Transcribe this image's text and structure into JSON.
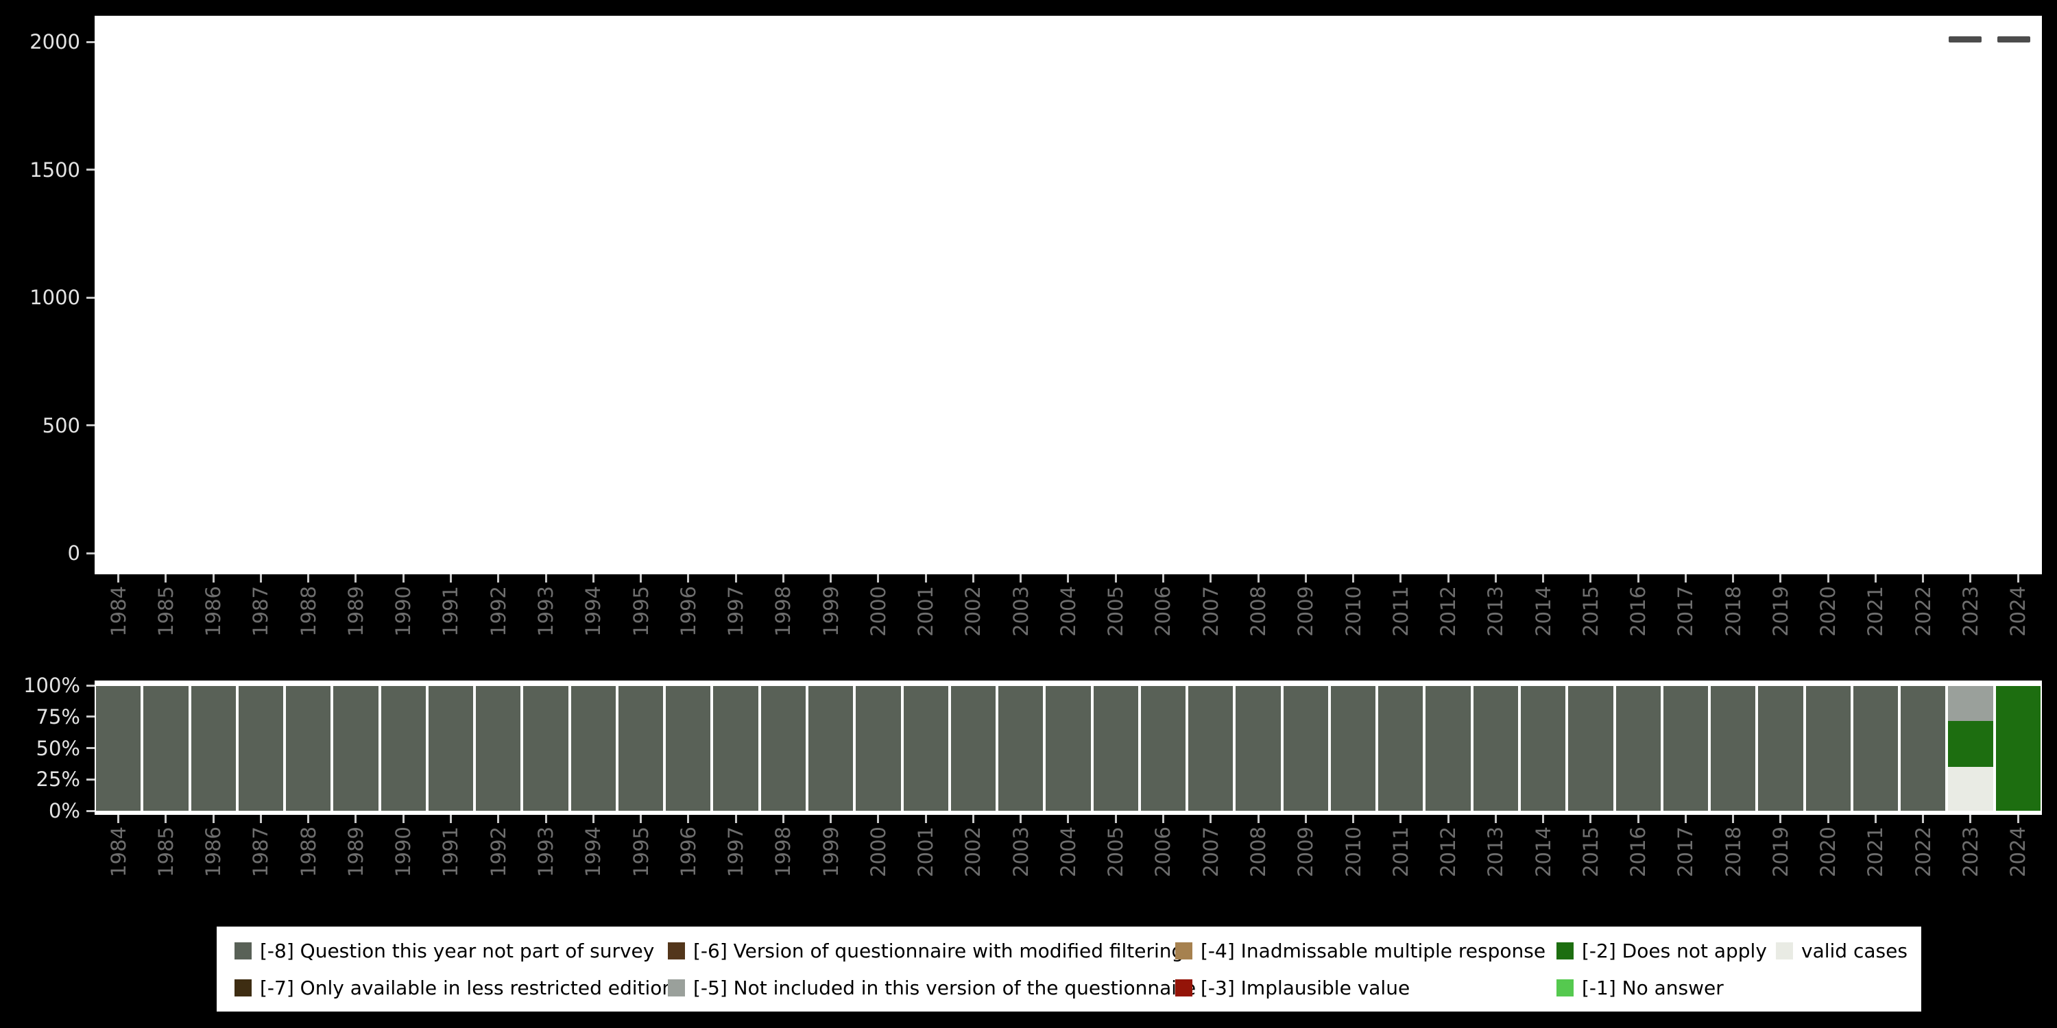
{
  "top_chart": {
    "y_tick_labels": [
      "2000",
      "1500",
      "1000",
      "500",
      "0"
    ]
  },
  "bottom_chart": {
    "y_tick_labels": [
      "100%",
      "75%",
      "50%",
      "25%",
      "0%"
    ]
  },
  "toolbar": {
    "icons": [
      "dash-icon",
      "dash-icon"
    ]
  },
  "legend": {
    "rows": [
      [
        {
          "label": "[-8] Question this year not part of survey",
          "color": "#596157"
        },
        {
          "label": "[-6] Version of questionnaire with modified filtering",
          "color": "#53361b"
        },
        {
          "label": "[-4] Inadmissable multiple response",
          "color": "#a6814f"
        },
        {
          "label": "[-2] Does not apply",
          "color": "#1d6e10"
        },
        {
          "label": "valid cases",
          "color": "#e9ebe4"
        }
      ],
      [
        {
          "label": "[-7] Only available in less restricted edition",
          "color": "#3e2d12"
        },
        {
          "label": "[-5] Not included in this version of the questionnaire",
          "color": "#9aa09b"
        },
        {
          "label": "[-3] Implausible value",
          "color": "#941408"
        },
        {
          "label": "[-1] No answer",
          "color": "#55c94f"
        }
      ]
    ]
  },
  "chart_data": [
    {
      "type": "bar",
      "title": "",
      "xlabel": "",
      "ylabel": "",
      "ylim": [
        0,
        2000
      ],
      "yticks": [
        0,
        500,
        1000,
        1500,
        2000
      ],
      "categories": [
        "1984",
        "1985",
        "1986",
        "1987",
        "1988",
        "1989",
        "1990",
        "1991",
        "1992",
        "1993",
        "1994",
        "1995",
        "1996",
        "1997",
        "1998",
        "1999",
        "2000",
        "2001",
        "2002",
        "2003",
        "2004",
        "2005",
        "2006",
        "2007",
        "2008",
        "2009",
        "2010",
        "2011",
        "2012",
        "2013",
        "2014",
        "2015",
        "2016",
        "2017",
        "2018",
        "2019",
        "2020",
        "2021",
        "2022",
        "2023",
        "2024"
      ],
      "values": [],
      "note": "plot area is empty — no visible bars (absolute counts panel)"
    },
    {
      "type": "bar",
      "stacked": true,
      "unit": "percent",
      "title": "",
      "xlabel": "",
      "ylabel": "",
      "ylim": [
        0,
        100
      ],
      "yticks": [
        "0%",
        "25%",
        "50%",
        "75%",
        "100%"
      ],
      "legend_position": "bottom",
      "stack_order": "bottom-to-top",
      "categories": [
        "1984",
        "1985",
        "1986",
        "1987",
        "1988",
        "1989",
        "1990",
        "1991",
        "1992",
        "1993",
        "1994",
        "1995",
        "1996",
        "1997",
        "1998",
        "1999",
        "2000",
        "2001",
        "2002",
        "2003",
        "2004",
        "2005",
        "2006",
        "2007",
        "2008",
        "2009",
        "2010",
        "2011",
        "2012",
        "2013",
        "2014",
        "2015",
        "2016",
        "2017",
        "2018",
        "2019",
        "2020",
        "2021",
        "2022",
        "2023",
        "2024"
      ],
      "series": [
        {
          "name": "valid cases",
          "color": "#e9ebe4",
          "values": [
            0,
            0,
            0,
            0,
            0,
            0,
            0,
            0,
            0,
            0,
            0,
            0,
            0,
            0,
            0,
            0,
            0,
            0,
            0,
            0,
            0,
            0,
            0,
            0,
            0,
            0,
            0,
            0,
            0,
            0,
            0,
            0,
            0,
            0,
            0,
            0,
            0,
            0,
            0,
            35,
            0
          ]
        },
        {
          "name": "[-2] Does not apply",
          "color": "#1d6e10",
          "values": [
            0,
            0,
            0,
            0,
            0,
            0,
            0,
            0,
            0,
            0,
            0,
            0,
            0,
            0,
            0,
            0,
            0,
            0,
            0,
            0,
            0,
            0,
            0,
            0,
            0,
            0,
            0,
            0,
            0,
            0,
            0,
            0,
            0,
            0,
            0,
            0,
            0,
            0,
            0,
            37,
            100
          ]
        },
        {
          "name": "[-5] Not included in this version of the questionnaire",
          "color": "#9aa09b",
          "values": [
            0,
            0,
            0,
            0,
            0,
            0,
            0,
            0,
            0,
            0,
            0,
            0,
            0,
            0,
            0,
            0,
            0,
            0,
            0,
            0,
            0,
            0,
            0,
            0,
            0,
            0,
            0,
            0,
            0,
            0,
            0,
            0,
            0,
            0,
            0,
            0,
            0,
            0,
            0,
            28,
            0
          ]
        },
        {
          "name": "[-8] Question this year not part of survey",
          "color": "#596157",
          "values": [
            100,
            100,
            100,
            100,
            100,
            100,
            100,
            100,
            100,
            100,
            100,
            100,
            100,
            100,
            100,
            100,
            100,
            100,
            100,
            100,
            100,
            100,
            100,
            100,
            100,
            100,
            100,
            100,
            100,
            100,
            100,
            100,
            100,
            100,
            100,
            100,
            100,
            100,
            100,
            0,
            0
          ]
        }
      ]
    }
  ]
}
